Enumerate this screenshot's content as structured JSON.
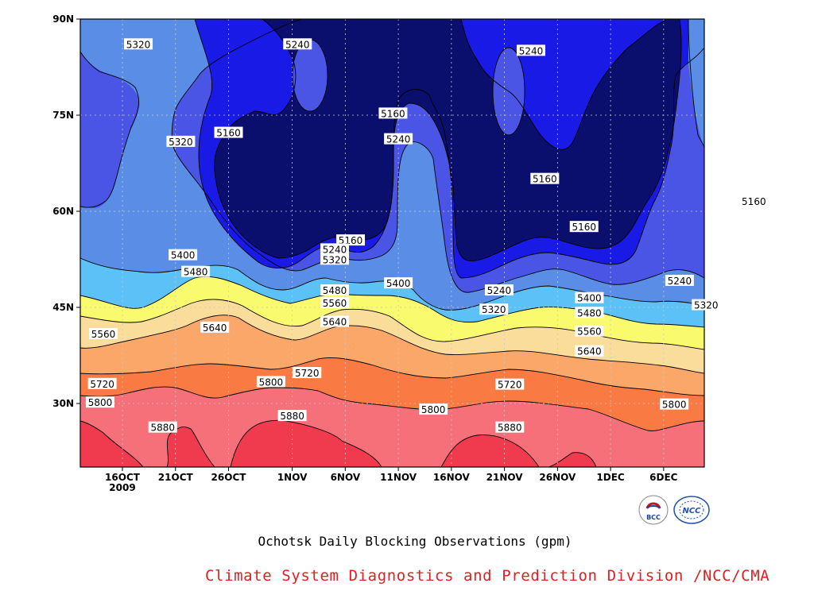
{
  "chart_data": {
    "type": "contour",
    "title": "Ochotsk Daily Blocking Observations (gpm)",
    "credit": "Climate System Diagnostics and Prediction Division /NCC/CMA",
    "y_ticks": [
      "90N",
      "75N",
      "60N",
      "45N",
      "30N"
    ],
    "x_ticks": [
      "16OCT",
      "21OCT",
      "26OCT",
      "1NOV",
      "6NOV",
      "11NOV",
      "16NOV",
      "21NOV",
      "26NOV",
      "1DEC",
      "6DEC"
    ],
    "x_year": "2009",
    "levels": [
      5160,
      5240,
      5320,
      5400,
      5480,
      5560,
      5640,
      5720,
      5800,
      5880
    ],
    "band_colors": [
      "#0a0f6e",
      "#1a1ae6",
      "#4a55e6",
      "#5a8ee6",
      "#5bc1f7",
      "#fafa6e",
      "#fadc9b",
      "#fba76a",
      "#fa7a44",
      "#f57079",
      "#f03a4e"
    ],
    "grid": true,
    "contour_labels": [
      {
        "v": "5320",
        "lon_day": 1.5,
        "lat": 86
      },
      {
        "v": "5240",
        "lon_day": 16.5,
        "lat": 86
      },
      {
        "v": "5240",
        "lon_day": 38.5,
        "lat": 85
      },
      {
        "v": "5160",
        "lon_day": 25.5,
        "lat": 75.2
      },
      {
        "v": "5240",
        "lon_day": 26,
        "lat": 71.2
      },
      {
        "v": "5160",
        "lon_day": 10,
        "lat": 72.2
      },
      {
        "v": "5320",
        "lon_day": 5.5,
        "lat": 70.8
      },
      {
        "v": "5160",
        "lon_day": 39.8,
        "lat": 65
      },
      {
        "v": "5160",
        "lon_day": 59.5,
        "lat": 61.5
      },
      {
        "v": "5160",
        "lon_day": 43.5,
        "lat": 57.5
      },
      {
        "v": "5160",
        "lon_day": 21.5,
        "lat": 55.4
      },
      {
        "v": "5240",
        "lon_day": 20,
        "lat": 54
      },
      {
        "v": "5320",
        "lon_day": 20,
        "lat": 52.4
      },
      {
        "v": "5400",
        "lon_day": 5.7,
        "lat": 53.1
      },
      {
        "v": "5480",
        "lon_day": 6.9,
        "lat": 50.5
      },
      {
        "v": "5240",
        "lon_day": 35.5,
        "lat": 47.6
      },
      {
        "v": "5240",
        "lon_day": 52.5,
        "lat": 49.1
      },
      {
        "v": "5400",
        "lon_day": 26,
        "lat": 48.7
      },
      {
        "v": "5480",
        "lon_day": 20,
        "lat": 47.6
      },
      {
        "v": "5560",
        "lon_day": 20,
        "lat": 45.6
      },
      {
        "v": "5400",
        "lon_day": 44,
        "lat": 46.4
      },
      {
        "v": "5320",
        "lon_day": 35,
        "lat": 44.6
      },
      {
        "v": "5320",
        "lon_day": 55,
        "lat": 45.3
      },
      {
        "v": "5480",
        "lon_day": 44,
        "lat": 44.1
      },
      {
        "v": "5640",
        "lon_day": 20,
        "lat": 42.7
      },
      {
        "v": "5640",
        "lon_day": 8.7,
        "lat": 41.8
      },
      {
        "v": "5560",
        "lon_day": 44,
        "lat": 41.2
      },
      {
        "v": "5560",
        "lon_day": -1.8,
        "lat": 40.8
      },
      {
        "v": "5640",
        "lon_day": 44,
        "lat": 38.1
      },
      {
        "v": "5720",
        "lon_day": 17.4,
        "lat": 34.7
      },
      {
        "v": "5720",
        "lon_day": -1.9,
        "lat": 33
      },
      {
        "v": "5800",
        "lon_day": 14,
        "lat": 33.3
      },
      {
        "v": "5720",
        "lon_day": 36.5,
        "lat": 32.9
      },
      {
        "v": "5800",
        "lon_day": -2.1,
        "lat": 30.1
      },
      {
        "v": "5800",
        "lon_day": 29.3,
        "lat": 29
      },
      {
        "v": "5800",
        "lon_day": 52,
        "lat": 29.8
      },
      {
        "v": "5880",
        "lon_day": 3.8,
        "lat": 26.2
      },
      {
        "v": "5880",
        "lon_day": 16,
        "lat": 28
      },
      {
        "v": "5880",
        "lon_day": 36.5,
        "lat": 26.2
      }
    ]
  },
  "logos": {
    "bcc_text": "BCC",
    "ncc_text": "NCC"
  }
}
